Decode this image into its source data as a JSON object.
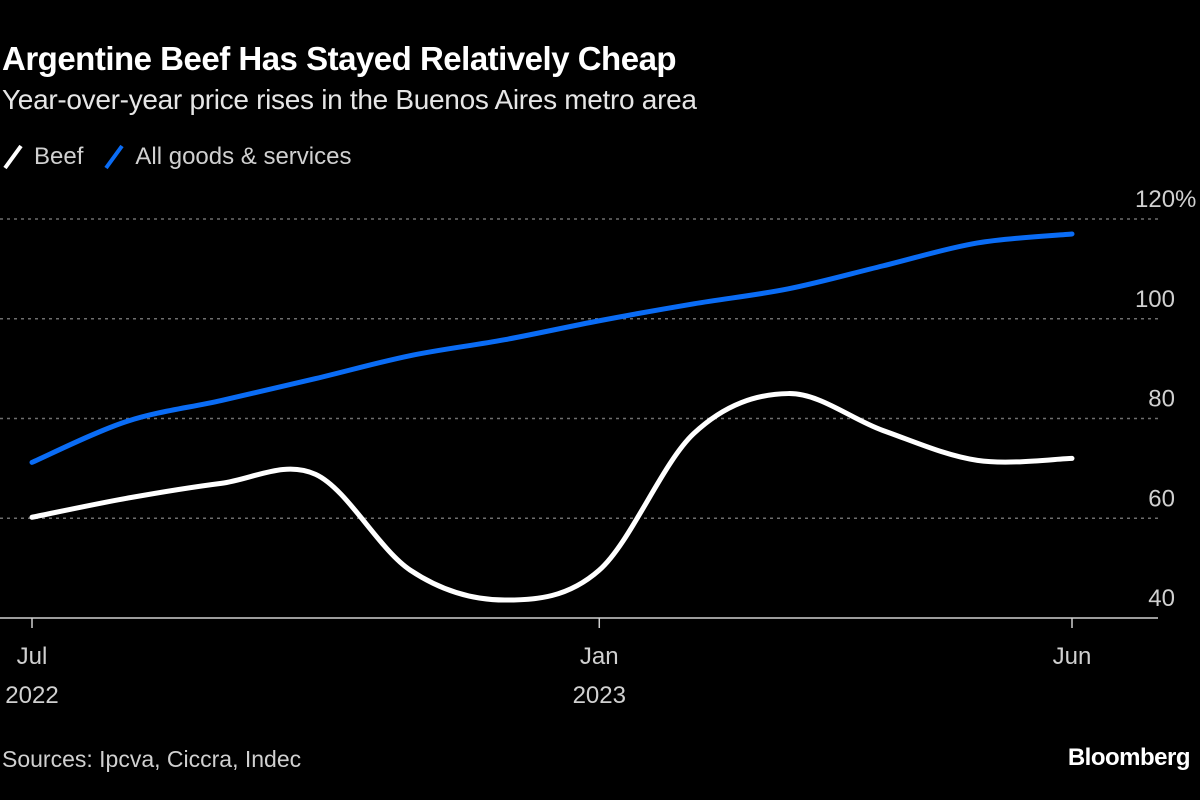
{
  "header": {
    "title": "Argentine Beef Has Stayed Relatively Cheap",
    "subtitle": "Year-over-year price rises in the Buenos Aires metro area"
  },
  "legend": [
    {
      "label": "Beef",
      "color": "#ffffff"
    },
    {
      "label": "All goods & services",
      "color": "#0a6cf5"
    }
  ],
  "footer": {
    "source": "Sources: Ipcva, Ciccra, Indec",
    "brand": "Bloomberg"
  },
  "chart_data": {
    "type": "line",
    "title": "Argentine Beef Has Stayed Relatively Cheap",
    "subtitle": "Year-over-year price rises in the Buenos Aires metro area",
    "xlabel": "",
    "ylabel": "",
    "x": [
      "2022-07",
      "2022-08",
      "2022-09",
      "2022-10",
      "2022-11",
      "2022-12",
      "2023-01",
      "2023-02",
      "2023-03",
      "2023-04",
      "2023-05",
      "2023-06"
    ],
    "x_ticks": [
      {
        "at": "2022-07",
        "label": [
          "Jul",
          "2022"
        ]
      },
      {
        "at": "2023-01",
        "label": [
          "Jan",
          "2023"
        ]
      },
      {
        "at": "2023-06",
        "label": [
          "Jun",
          ""
        ]
      }
    ],
    "ylim": [
      40,
      120
    ],
    "y_ticks": [
      {
        "value": 40,
        "label": "40"
      },
      {
        "value": 60,
        "label": "60"
      },
      {
        "value": 80,
        "label": "80"
      },
      {
        "value": 100,
        "label": "100"
      },
      {
        "value": 120,
        "label": "120%"
      }
    ],
    "grid": true,
    "legend_position": "top-left",
    "series": [
      {
        "name": "Beef",
        "color": "#ffffff",
        "values": [
          60.2,
          64.0,
          67.0,
          68.8,
          49.6,
          43.6,
          49.6,
          77.0,
          85.0,
          77.6,
          71.6,
          72.0
        ]
      },
      {
        "name": "All goods & services",
        "color": "#0a6cf5",
        "values": [
          71.2,
          79.4,
          83.6,
          88.0,
          92.6,
          95.8,
          99.6,
          103.0,
          106.0,
          110.6,
          115.2,
          117.0
        ]
      }
    ]
  }
}
